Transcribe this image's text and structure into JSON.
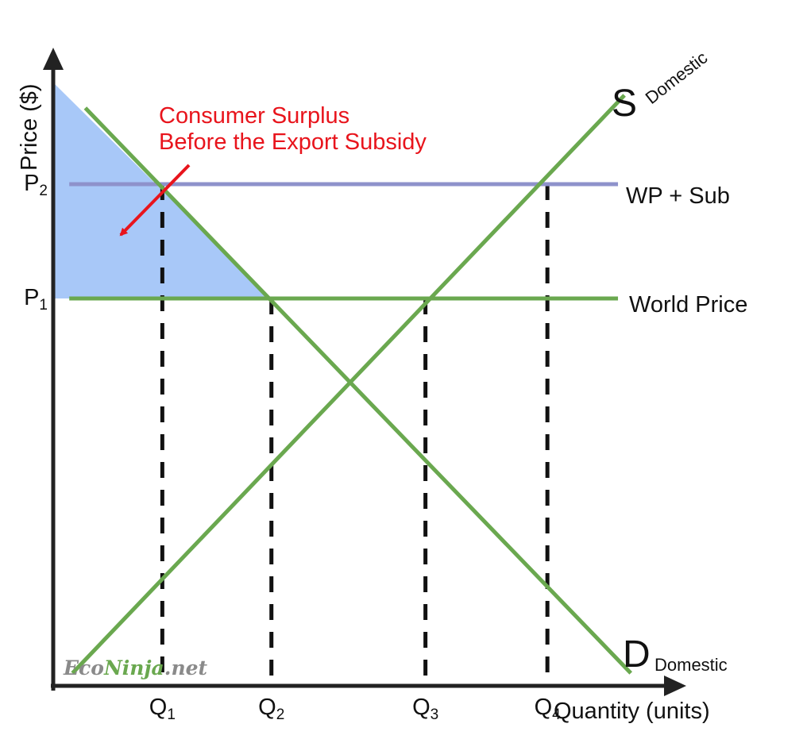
{
  "chart_data": {
    "type": "line",
    "title": "",
    "ylabel": "Price ($)",
    "xlabel": "Quantity (units)",
    "price_ticks": [
      {
        "main": "P",
        "sub": "2",
        "level": 0.79
      },
      {
        "main": "P",
        "sub": "1",
        "level": 0.61
      }
    ],
    "quantity_ticks": [
      {
        "main": "Q",
        "sub": "1",
        "q": 0.17
      },
      {
        "main": "Q",
        "sub": "2",
        "q": 0.34
      },
      {
        "main": "Q",
        "sub": "3",
        "q": 0.58
      },
      {
        "main": "Q",
        "sub": "4",
        "q": 0.77
      }
    ],
    "series": [
      {
        "name": "S",
        "name_sub": "Domestic",
        "color": "#6aa84f",
        "points": [
          [
            0.03,
            0.02
          ],
          [
            0.89,
            0.93
          ]
        ]
      },
      {
        "name": "D",
        "name_sub": "Domestic",
        "color": "#6aa84f",
        "points": [
          [
            0.05,
            0.91
          ],
          [
            0.9,
            0.02
          ]
        ]
      }
    ],
    "price_lines": [
      {
        "name": "WP + Sub",
        "level": 0.79,
        "color": "#8e92cb"
      },
      {
        "name": "World Price",
        "level": 0.61,
        "color": "#6aa84f"
      }
    ],
    "shaded_area": {
      "label": "Consumer Surplus Before the Export Subsidy",
      "color": "#a8c8f8",
      "polygon": [
        [
          0.0,
          0.95
        ],
        [
          0.34,
          0.61
        ],
        [
          0.0,
          0.61
        ]
      ]
    },
    "annotation": {
      "lines": [
        "Consumer Surplus",
        "Before the Export Subsidy"
      ],
      "color": "#e8141c"
    },
    "watermark": {
      "part1": "Eco",
      "part2": "Ninja",
      "part3": ".net"
    },
    "grid": false
  }
}
